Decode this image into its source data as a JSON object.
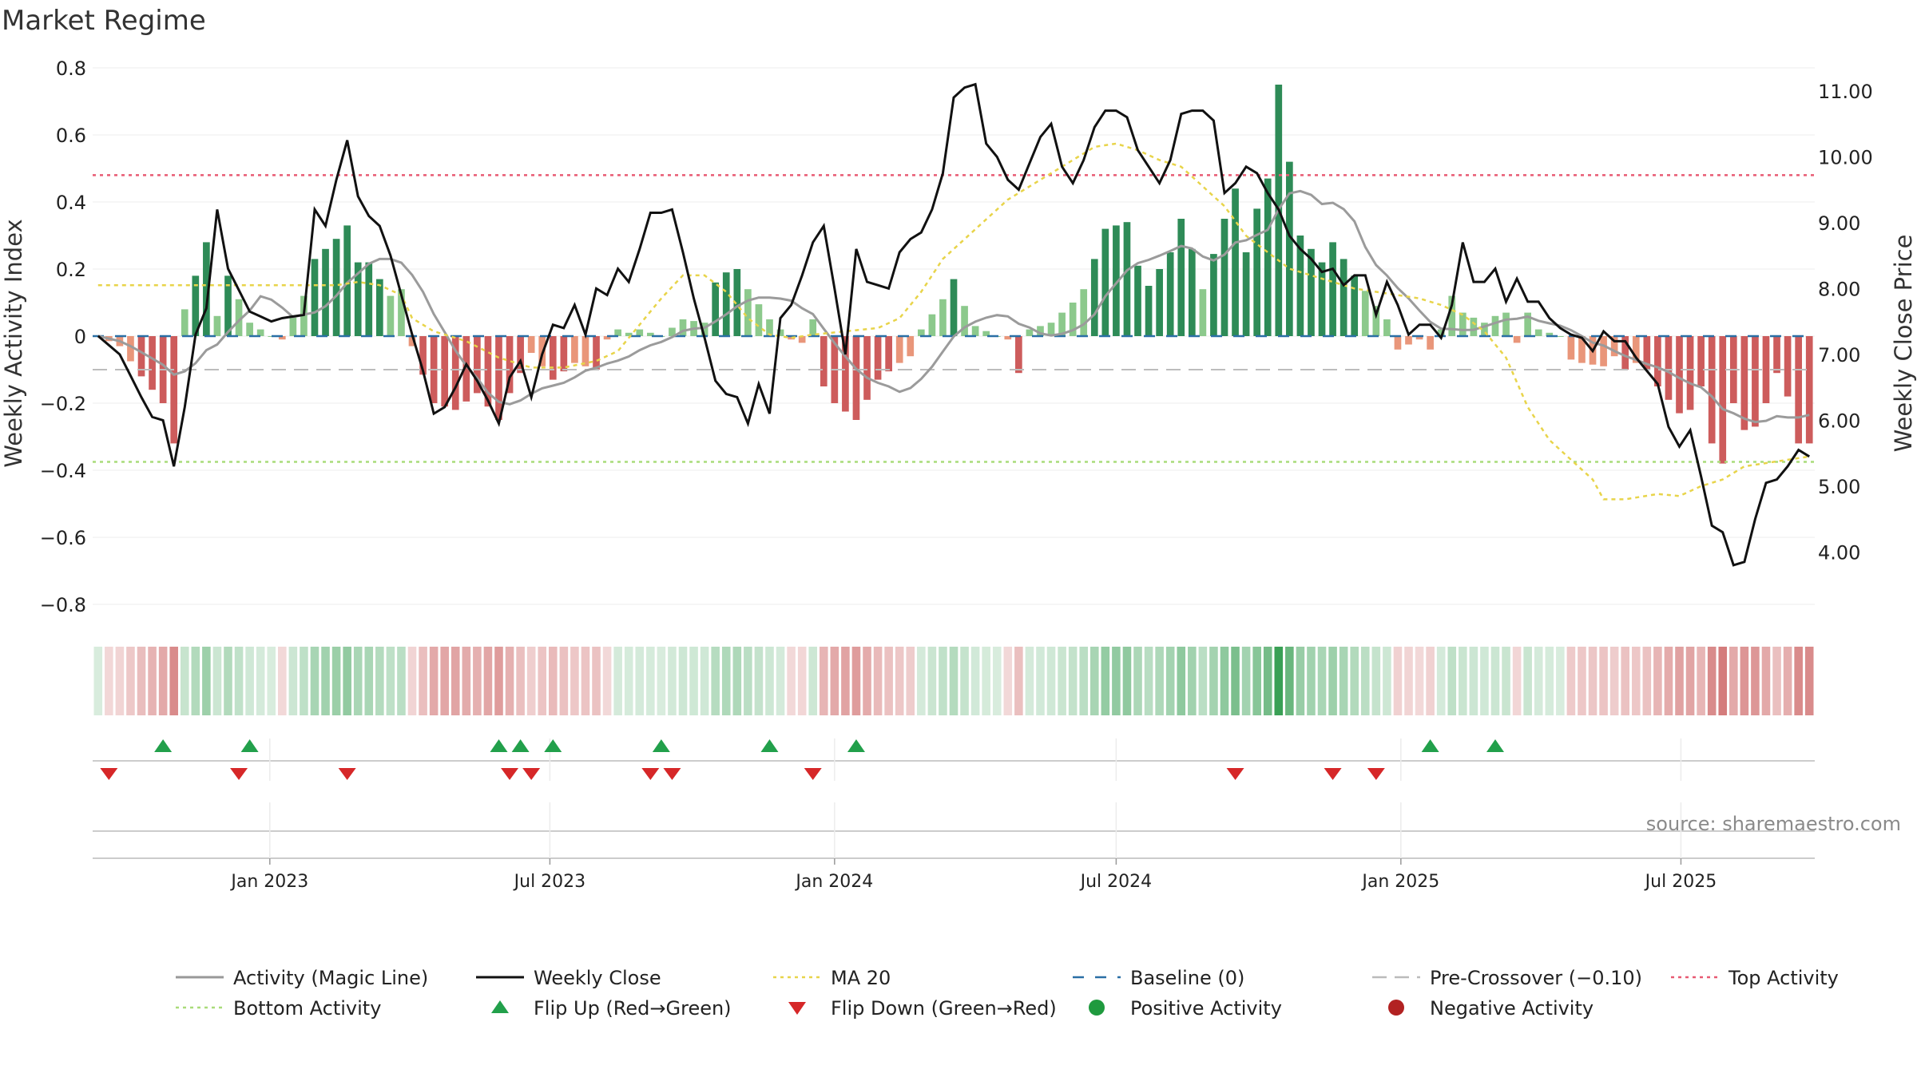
{
  "chart_data": {
    "type": "bar",
    "title": "Market Regime",
    "source": "source: sharemaestro.com",
    "ylabel_left": "Weekly Activity Index",
    "ylabel_right": "Weekly Close Price",
    "ylim_left": [
      -0.85,
      0.8
    ],
    "ylim_right": [
      2.95,
      11.35
    ],
    "yticks_left": [
      0.8,
      0.6,
      0.4,
      0.2,
      0,
      -0.2,
      -0.4,
      -0.6,
      -0.8
    ],
    "yticks_left_labels": [
      "0.8",
      "0.6",
      "0.4",
      "0.2",
      "0",
      "−0.2",
      "−0.4",
      "−0.6",
      "−0.8"
    ],
    "yticks_right": [
      11,
      10,
      9,
      8,
      7,
      6,
      5,
      4
    ],
    "yticks_right_labels": [
      "11.00",
      "10.00",
      "9.00",
      "8.00",
      "7.00",
      "6.00",
      "5.00",
      "4.00"
    ],
    "x_start": "2022-09-12",
    "week_count": 159,
    "x_ticks": [
      {
        "date": "2023-01-01",
        "label": "Jan 2023"
      },
      {
        "date": "2023-07-01",
        "label": "Jul 2023"
      },
      {
        "date": "2024-01-01",
        "label": "Jan 2024"
      },
      {
        "date": "2024-07-01",
        "label": "Jul 2024"
      },
      {
        "date": "2025-01-01",
        "label": "Jan 2025"
      },
      {
        "date": "2025-07-01",
        "label": "Jul 2025"
      }
    ],
    "grid": true,
    "legend_position": "bottom",
    "reference_lines": {
      "top_activity": 0.48,
      "bottom_activity": -0.375,
      "pre_crossover": -0.1,
      "baseline": 0
    },
    "activity_keyframes": [
      [
        0,
        0
      ],
      [
        2,
        -0.03
      ],
      [
        4,
        -0.12
      ],
      [
        6,
        -0.2
      ],
      [
        7,
        -0.32
      ],
      [
        8,
        0.08
      ],
      [
        9,
        0.18
      ],
      [
        10,
        0.28
      ],
      [
        11,
        0.06
      ],
      [
        12,
        0.18
      ],
      [
        14,
        0.04
      ],
      [
        16,
        0
      ],
      [
        17,
        -0.01
      ],
      [
        19,
        0.12
      ],
      [
        20,
        0.23
      ],
      [
        22,
        0.29
      ],
      [
        23,
        0.33
      ],
      [
        24,
        0.22
      ],
      [
        25,
        0.22
      ],
      [
        27,
        0.12
      ],
      [
        28,
        0.14
      ],
      [
        29,
        -0.03
      ],
      [
        31,
        -0.2
      ],
      [
        33,
        -0.22
      ],
      [
        35,
        -0.17
      ],
      [
        37,
        -0.25
      ],
      [
        38,
        -0.17
      ],
      [
        40,
        -0.05
      ],
      [
        42,
        -0.13
      ],
      [
        44,
        -0.08
      ],
      [
        46,
        -0.1
      ],
      [
        47,
        -0.01
      ],
      [
        48,
        0.02
      ],
      [
        49,
        0.01
      ],
      [
        50,
        0.02
      ],
      [
        52,
        0
      ],
      [
        54,
        0.05
      ],
      [
        56,
        0.04
      ],
      [
        57,
        0.16
      ],
      [
        58,
        0.19
      ],
      [
        59,
        0.2
      ],
      [
        60,
        0.14
      ],
      [
        62,
        0.05
      ],
      [
        64,
        -0.01
      ],
      [
        65,
        -0.02
      ],
      [
        66,
        0.05
      ],
      [
        67,
        -0.15
      ],
      [
        68,
        -0.2
      ],
      [
        70,
        -0.25
      ],
      [
        72,
        -0.13
      ],
      [
        74,
        -0.08
      ],
      [
        75,
        -0.06
      ],
      [
        76,
        0.02
      ],
      [
        78,
        0.11
      ],
      [
        79,
        0.17
      ],
      [
        80,
        0.09
      ],
      [
        81,
        0.03
      ],
      [
        83,
        0
      ],
      [
        84,
        -0.01
      ],
      [
        85,
        -0.11
      ],
      [
        86,
        0.02
      ],
      [
        88,
        0.04
      ],
      [
        90,
        0.1
      ],
      [
        91,
        0.14
      ],
      [
        92,
        0.23
      ],
      [
        93,
        0.32
      ],
      [
        94,
        0.33
      ],
      [
        95,
        0.34
      ],
      [
        96,
        0.21
      ],
      [
        97,
        0.15
      ],
      [
        99,
        0.25
      ],
      [
        100,
        0.35
      ],
      [
        101,
        0.26
      ],
      [
        102,
        0.14
      ],
      [
        104,
        0.35
      ],
      [
        105,
        0.44
      ],
      [
        106,
        0.25
      ],
      [
        107,
        0.38
      ],
      [
        108,
        0.47
      ],
      [
        109,
        0.75
      ],
      [
        110,
        0.52
      ],
      [
        111,
        0.3
      ],
      [
        113,
        0.22
      ],
      [
        114,
        0.28
      ],
      [
        116,
        0.18
      ],
      [
        118,
        0.09
      ],
      [
        119,
        0.05
      ],
      [
        120,
        -0.04
      ],
      [
        122,
        -0.01
      ],
      [
        123,
        -0.04
      ],
      [
        124,
        0.02
      ],
      [
        125,
        0.12
      ],
      [
        126,
        0.07
      ],
      [
        128,
        0.04
      ],
      [
        129,
        0.06
      ],
      [
        130,
        0.07
      ],
      [
        131,
        -0.02
      ],
      [
        132,
        0.07
      ],
      [
        133,
        0.02
      ],
      [
        134,
        0.01
      ],
      [
        135,
        0
      ],
      [
        136,
        -0.07
      ],
      [
        137,
        -0.08
      ],
      [
        139,
        -0.09
      ],
      [
        140,
        -0.06
      ],
      [
        141,
        -0.1
      ],
      [
        142,
        -0.08
      ],
      [
        143,
        -0.1
      ],
      [
        144,
        -0.15
      ],
      [
        145,
        -0.19
      ],
      [
        146,
        -0.23
      ],
      [
        147,
        -0.22
      ],
      [
        148,
        -0.15
      ],
      [
        149,
        -0.32
      ],
      [
        150,
        -0.38
      ],
      [
        151,
        -0.2
      ],
      [
        152,
        -0.28
      ],
      [
        153,
        -0.27
      ],
      [
        154,
        -0.2
      ],
      [
        155,
        -0.11
      ],
      [
        156,
        -0.18
      ],
      [
        157,
        -0.32
      ],
      [
        158,
        -0.32
      ]
    ],
    "close_keyframes": [
      [
        0,
        7.28
      ],
      [
        2,
        7.0
      ],
      [
        4,
        6.35
      ],
      [
        5,
        6.05
      ],
      [
        6,
        6.0
      ],
      [
        7,
        5.3
      ],
      [
        8,
        6.2
      ],
      [
        9,
        7.3
      ],
      [
        10,
        7.7
      ],
      [
        11,
        9.2
      ],
      [
        12,
        8.3
      ],
      [
        14,
        7.65
      ],
      [
        16,
        7.5
      ],
      [
        17,
        7.55
      ],
      [
        19,
        7.6
      ],
      [
        20,
        9.2
      ],
      [
        21,
        8.95
      ],
      [
        22,
        9.65
      ],
      [
        23,
        10.25
      ],
      [
        24,
        9.4
      ],
      [
        25,
        9.1
      ],
      [
        26,
        8.95
      ],
      [
        27,
        8.5
      ],
      [
        28,
        7.9
      ],
      [
        29,
        7.3
      ],
      [
        30,
        6.75
      ],
      [
        31,
        6.1
      ],
      [
        32,
        6.2
      ],
      [
        33,
        6.5
      ],
      [
        34,
        6.85
      ],
      [
        35,
        6.6
      ],
      [
        36,
        6.3
      ],
      [
        37,
        5.95
      ],
      [
        38,
        6.65
      ],
      [
        39,
        6.9
      ],
      [
        40,
        6.35
      ],
      [
        41,
        7.0
      ],
      [
        42,
        7.45
      ],
      [
        43,
        7.4
      ],
      [
        44,
        7.75
      ],
      [
        45,
        7.3
      ],
      [
        46,
        8.0
      ],
      [
        47,
        7.9
      ],
      [
        48,
        8.3
      ],
      [
        49,
        8.1
      ],
      [
        50,
        8.6
      ],
      [
        51,
        9.15
      ],
      [
        52,
        9.15
      ],
      [
        53,
        9.2
      ],
      [
        54,
        8.55
      ],
      [
        55,
        7.85
      ],
      [
        56,
        7.25
      ],
      [
        57,
        6.6
      ],
      [
        58,
        6.4
      ],
      [
        59,
        6.35
      ],
      [
        60,
        5.95
      ],
      [
        61,
        6.55
      ],
      [
        62,
        6.1
      ],
      [
        63,
        7.55
      ],
      [
        64,
        7.75
      ],
      [
        65,
        8.2
      ],
      [
        66,
        8.7
      ],
      [
        67,
        8.95
      ],
      [
        68,
        8.0
      ],
      [
        69,
        7.0
      ],
      [
        70,
        8.6
      ],
      [
        71,
        8.1
      ],
      [
        72,
        8.05
      ],
      [
        73,
        8.0
      ],
      [
        74,
        8.55
      ],
      [
        75,
        8.75
      ],
      [
        76,
        8.85
      ],
      [
        77,
        9.2
      ],
      [
        78,
        9.75
      ],
      [
        79,
        10.9
      ],
      [
        80,
        11.05
      ],
      [
        81,
        11.1
      ],
      [
        82,
        10.2
      ],
      [
        83,
        10.0
      ],
      [
        84,
        9.65
      ],
      [
        85,
        9.5
      ],
      [
        86,
        9.9
      ],
      [
        87,
        10.3
      ],
      [
        88,
        10.5
      ],
      [
        89,
        9.85
      ],
      [
        90,
        9.6
      ],
      [
        91,
        9.95
      ],
      [
        92,
        10.45
      ],
      [
        93,
        10.7
      ],
      [
        94,
        10.7
      ],
      [
        95,
        10.6
      ],
      [
        96,
        10.1
      ],
      [
        97,
        9.85
      ],
      [
        98,
        9.6
      ],
      [
        99,
        9.95
      ],
      [
        100,
        10.65
      ],
      [
        101,
        10.7
      ],
      [
        102,
        10.7
      ],
      [
        103,
        10.55
      ],
      [
        104,
        9.45
      ],
      [
        105,
        9.6
      ],
      [
        106,
        9.85
      ],
      [
        107,
        9.75
      ],
      [
        108,
        9.45
      ],
      [
        109,
        9.2
      ],
      [
        110,
        8.8
      ],
      [
        111,
        8.6
      ],
      [
        112,
        8.45
      ],
      [
        113,
        8.25
      ],
      [
        114,
        8.3
      ],
      [
        115,
        8.05
      ],
      [
        116,
        8.2
      ],
      [
        117,
        8.2
      ],
      [
        118,
        7.6
      ],
      [
        119,
        8.1
      ],
      [
        120,
        7.75
      ],
      [
        121,
        7.3
      ],
      [
        122,
        7.45
      ],
      [
        123,
        7.45
      ],
      [
        124,
        7.25
      ],
      [
        125,
        7.75
      ],
      [
        126,
        8.7
      ],
      [
        127,
        8.1
      ],
      [
        128,
        8.1
      ],
      [
        129,
        8.3
      ],
      [
        130,
        7.8
      ],
      [
        131,
        8.15
      ],
      [
        132,
        7.8
      ],
      [
        133,
        7.8
      ],
      [
        134,
        7.55
      ],
      [
        135,
        7.4
      ],
      [
        136,
        7.3
      ],
      [
        137,
        7.25
      ],
      [
        138,
        7.05
      ],
      [
        139,
        7.35
      ],
      [
        140,
        7.2
      ],
      [
        141,
        7.2
      ],
      [
        142,
        6.95
      ],
      [
        143,
        6.75
      ],
      [
        144,
        6.55
      ],
      [
        145,
        5.9
      ],
      [
        146,
        5.6
      ],
      [
        147,
        5.85
      ],
      [
        148,
        5.15
      ],
      [
        149,
        4.4
      ],
      [
        150,
        4.3
      ],
      [
        151,
        3.8
      ],
      [
        152,
        3.85
      ],
      [
        153,
        4.5
      ],
      [
        154,
        5.05
      ],
      [
        155,
        5.1
      ],
      [
        156,
        5.3
      ],
      [
        157,
        5.55
      ],
      [
        158,
        5.45
      ]
    ],
    "ma20_keyframes": [
      [
        0,
        8.05
      ],
      [
        5,
        8.05
      ],
      [
        10,
        8.05
      ],
      [
        15,
        8.05
      ],
      [
        20,
        8.05
      ],
      [
        22,
        8.05
      ],
      [
        24,
        8.1
      ],
      [
        26,
        8.05
      ],
      [
        28,
        7.9
      ],
      [
        29,
        7.55
      ],
      [
        31,
        7.35
      ],
      [
        34,
        7.2
      ],
      [
        37,
        6.95
      ],
      [
        40,
        6.8
      ],
      [
        43,
        6.8
      ],
      [
        46,
        6.9
      ],
      [
        48,
        7.05
      ],
      [
        50,
        7.45
      ],
      [
        52,
        7.85
      ],
      [
        54,
        8.2
      ],
      [
        56,
        8.2
      ],
      [
        58,
        7.95
      ],
      [
        60,
        7.55
      ],
      [
        62,
        7.3
      ],
      [
        64,
        7.25
      ],
      [
        66,
        7.3
      ],
      [
        69,
        7.35
      ],
      [
        72,
        7.4
      ],
      [
        74,
        7.55
      ],
      [
        76,
        7.95
      ],
      [
        78,
        8.45
      ],
      [
        80,
        8.75
      ],
      [
        82,
        9.05
      ],
      [
        84,
        9.35
      ],
      [
        86,
        9.55
      ],
      [
        88,
        9.75
      ],
      [
        90,
        9.95
      ],
      [
        92,
        10.15
      ],
      [
        94,
        10.2
      ],
      [
        96,
        10.1
      ],
      [
        98,
        9.95
      ],
      [
        100,
        9.85
      ],
      [
        102,
        9.55
      ],
      [
        104,
        9.25
      ],
      [
        106,
        8.8
      ],
      [
        108,
        8.55
      ],
      [
        110,
        8.3
      ],
      [
        112,
        8.2
      ],
      [
        114,
        8.1
      ],
      [
        116,
        8.0
      ],
      [
        118,
        7.95
      ],
      [
        120,
        7.9
      ],
      [
        122,
        7.85
      ],
      [
        124,
        7.75
      ],
      [
        126,
        7.6
      ],
      [
        128,
        7.35
      ],
      [
        130,
        6.95
      ],
      [
        132,
        6.2
      ],
      [
        134,
        5.7
      ],
      [
        136,
        5.4
      ],
      [
        138,
        5.1
      ],
      [
        139,
        4.8
      ],
      [
        141,
        4.8
      ],
      [
        144,
        4.88
      ],
      [
        146,
        4.85
      ],
      [
        148,
        5.0
      ],
      [
        150,
        5.1
      ],
      [
        152,
        5.3
      ],
      [
        154,
        5.35
      ],
      [
        158,
        5.45
      ]
    ],
    "flip_up_weeks": [
      6,
      14,
      37,
      39,
      42,
      52,
      62,
      70,
      123,
      129
    ],
    "flip_down_weeks": [
      1,
      13,
      23,
      38,
      40,
      51,
      53,
      66,
      105,
      114,
      118
    ],
    "legend": [
      {
        "label": "Activity (Magic Line)",
        "kind": "line",
        "color": "#999999"
      },
      {
        "label": "Weekly Close",
        "kind": "line",
        "color": "#111111"
      },
      {
        "label": "MA 20",
        "kind": "dotted",
        "color": "#e8d44a"
      },
      {
        "label": "Baseline (0)",
        "kind": "dashed",
        "color": "#2a6fa5"
      },
      {
        "label": "Pre-Crossover (−0.10)",
        "kind": "dashed",
        "color": "#bbbbbb"
      },
      {
        "label": "Top Activity",
        "kind": "dotted",
        "color": "#e85a73"
      },
      {
        "label": "Bottom Activity",
        "kind": "dotted",
        "color": "#a9dc7a"
      },
      {
        "label": "Flip Up (Red→Green)",
        "kind": "tri-up",
        "color": "#22a04b"
      },
      {
        "label": "Flip Down (Green→Red)",
        "kind": "tri-down",
        "color": "#d62728"
      },
      {
        "label": "Positive Activity",
        "kind": "dot",
        "color": "#1f9a3e"
      },
      {
        "label": "Negative Activity",
        "kind": "dot",
        "color": "#b22222"
      }
    ],
    "colors": {
      "pos_strong": "#2e8b57",
      "pos_light": "#8cc98c",
      "neg_strong": "#cd5c5c",
      "neg_light": "#e9967a",
      "close_line": "#111111",
      "magic_line": "#9b9b9b"
    }
  }
}
